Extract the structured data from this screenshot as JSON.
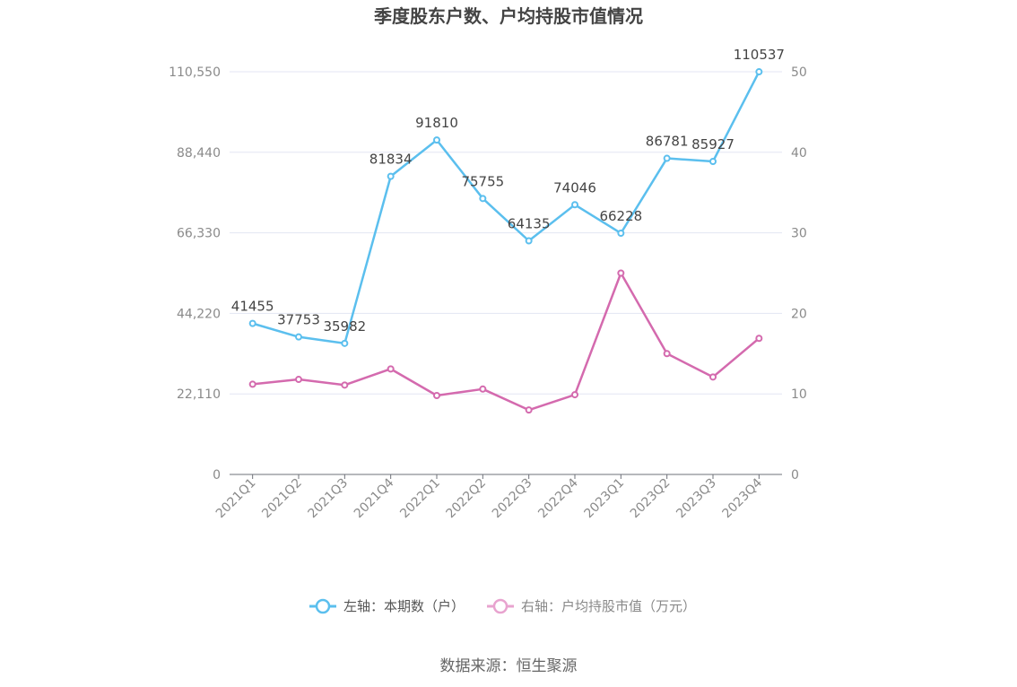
{
  "chart_data": {
    "type": "line",
    "title": "季度股东户数、户均持股市值情况",
    "categories": [
      "2021Q1",
      "2021Q2",
      "2021Q3",
      "2021Q4",
      "2022Q1",
      "2022Q2",
      "2022Q3",
      "2022Q4",
      "2023Q1",
      "2023Q2",
      "2023Q3",
      "2023Q4"
    ],
    "left_axis": {
      "ylim": [
        0,
        110550
      ],
      "ticks": [
        "0",
        "22,110",
        "44,220",
        "66,330",
        "88,440",
        "110,550"
      ]
    },
    "right_axis": {
      "ylim": [
        0,
        50
      ],
      "ticks": [
        "0",
        "10",
        "20",
        "30",
        "40",
        "50"
      ]
    },
    "series": [
      {
        "name": "左轴：本期数（户）",
        "axis": "left",
        "color": "#5bbfee",
        "values": [
          41455,
          37753,
          35982,
          81834,
          91810,
          75755,
          64135,
          74046,
          66228,
          86781,
          85927,
          110537
        ],
        "labels": [
          "41455",
          "37753",
          "35982",
          "81834",
          "91810",
          "75755",
          "64135",
          "74046",
          "66228",
          "86781",
          "85927",
          "110537"
        ]
      },
      {
        "name": "右轴：户均持股市值（万元）",
        "axis": "right",
        "color": "#d46aae",
        "values": [
          11.2,
          11.8,
          11.1,
          13.1,
          9.8,
          10.6,
          8.0,
          9.9,
          25.0,
          15.0,
          12.1,
          16.9
        ]
      }
    ],
    "legend_position": "bottom",
    "grid": true
  },
  "source": "数据来源：恒生聚源"
}
